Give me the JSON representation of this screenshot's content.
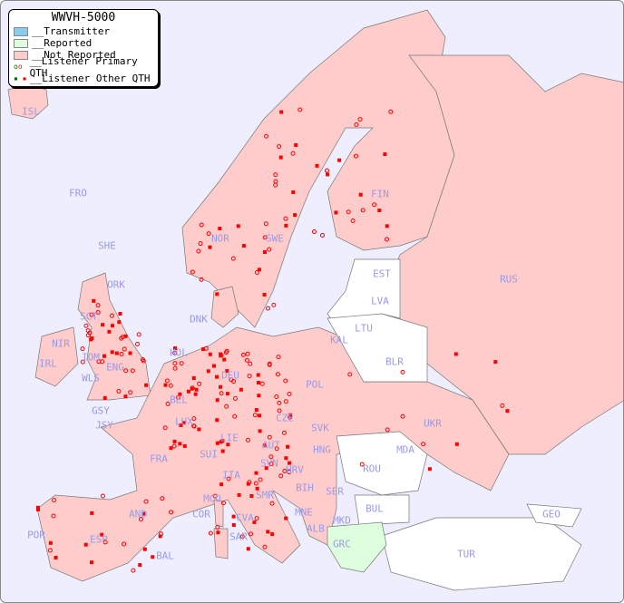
{
  "legend": {
    "title": "WWVH-5000",
    "items": [
      {
        "label": "__Transmitter",
        "color": "#88ccee"
      },
      {
        "label": "__Reported",
        "color": "#ddffdd"
      },
      {
        "label": "__Not Reported",
        "color": "#ffcccc"
      },
      {
        "label": "__Listener Primary QTH",
        "marker": "circle",
        "color": "#ff0000"
      },
      {
        "label": "__Listener Other QTH",
        "marker": "square",
        "color": "#ff0000"
      }
    ]
  },
  "colors": {
    "sea": "#eeeeff",
    "not_reported": "#ffcccc",
    "reported": "#ddffdd",
    "no_data": "#ffffff",
    "marker": "#ff0000",
    "label": "#9a9ae6"
  },
  "countries": [
    "ISL",
    "FRO",
    "SHE",
    "ORK",
    "NOR",
    "SWE",
    "FIN",
    "EST",
    "RUS",
    "LVA",
    "LTU",
    "DNK",
    "SCT",
    "NIR",
    "IRL",
    "IOM",
    "ENG",
    "WLS",
    "HOL",
    "BEL",
    "DEU",
    "KAL",
    "POL",
    "BLR",
    "UKR",
    "GSY",
    "JSY",
    "LUX",
    "CZE",
    "SVK",
    "FRA",
    "LIE",
    "AUT",
    "HNG",
    "MDA",
    "SUI",
    "SVN",
    "HRV",
    "ROU",
    "ITA",
    "BIH",
    "SER",
    "SMR",
    "MCO",
    "COR",
    "BUL",
    "AND",
    "MNE",
    "CVA",
    "MKD",
    "ALB",
    "GEO",
    "POR",
    "ESP",
    "SAR",
    "GRC",
    "BAL",
    "TUR"
  ]
}
